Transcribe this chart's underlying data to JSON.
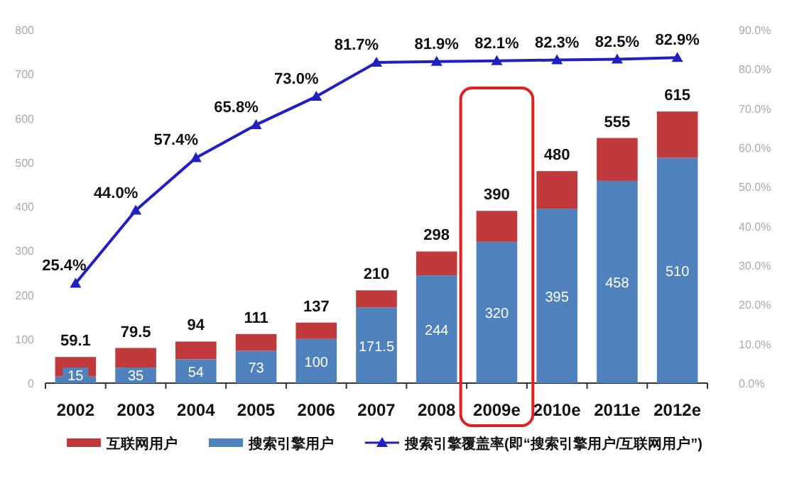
{
  "chart_data": {
    "type": "bar",
    "stacked": true,
    "categories": [
      "2002",
      "2003",
      "2004",
      "2005",
      "2006",
      "2007",
      "2008",
      "2009e",
      "2010e",
      "2011e",
      "2012e"
    ],
    "series": [
      {
        "name": "搜索引擎用户",
        "color": "#4f81bd",
        "values": [
          15,
          35,
          54,
          73,
          100,
          171.5,
          244,
          320,
          395,
          458,
          510
        ],
        "value_labels": [
          "15",
          "35",
          "54",
          "73",
          "100",
          "171.5",
          "244",
          "320",
          "395",
          "458",
          "510"
        ]
      },
      {
        "name": "互联网用户",
        "color": "#c0393b",
        "values": [
          44.1,
          44.5,
          40,
          38,
          37,
          38.5,
          54,
          70,
          85,
          97,
          105
        ]
      },
      {
        "name": "搜索引擎覆盖率(即“搜索引擎用户/互联网用户”)",
        "type": "line",
        "axis": "y2",
        "color": "#2020c0",
        "marker": "triangle",
        "values": [
          25.4,
          44.0,
          57.4,
          65.8,
          73.0,
          81.7,
          81.9,
          82.1,
          82.3,
          82.5,
          82.9
        ],
        "value_labels": [
          "25.4%",
          "44.0%",
          "57.4%",
          "65.8%",
          "73.0%",
          "81.7%",
          "81.9%",
          "82.1%",
          "82.3%",
          "82.5%",
          "82.9%"
        ]
      }
    ],
    "totals": [
      "59.1",
      "79.5",
      "94",
      "111",
      "137",
      "210",
      "298",
      "390",
      "480",
      "555",
      "615"
    ],
    "ylim": [
      0,
      800
    ],
    "yticks": [
      0,
      100,
      200,
      300,
      400,
      500,
      600,
      700,
      800
    ],
    "y2lim": [
      0,
      90
    ],
    "y2ticks": [
      {
        "value": 0,
        "label": "0.0%"
      },
      {
        "value": 10,
        "label": "10.0%"
      },
      {
        "value": 20,
        "label": "20.0%"
      },
      {
        "value": 30,
        "label": "30.0%"
      },
      {
        "value": 40,
        "label": "40.0%"
      },
      {
        "value": 50,
        "label": "50.0%"
      },
      {
        "value": 60,
        "label": "60.0%"
      },
      {
        "value": 70,
        "label": "70.0%"
      },
      {
        "value": 80,
        "label": "80.0%"
      },
      {
        "value": 90,
        "label": "90.0%"
      }
    ],
    "grid": false,
    "legend": "bottom"
  }
}
